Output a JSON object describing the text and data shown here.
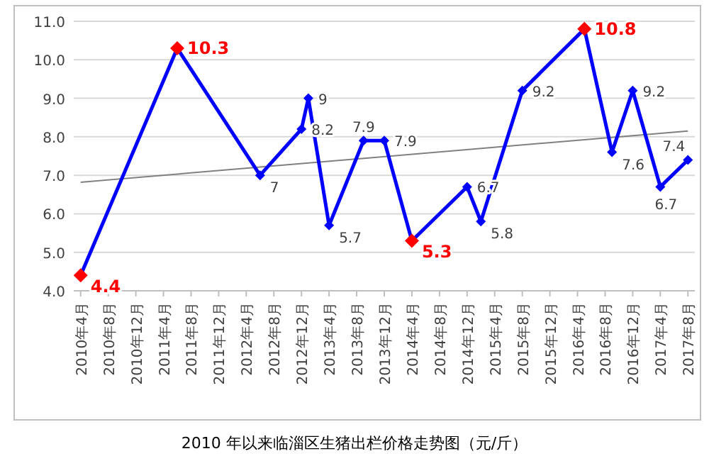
{
  "chart_data": {
    "type": "line",
    "title": "2010 年以来临淄区生猪出栏价格走势图（元/斤）",
    "xlim": [
      "2010-03",
      "2017-09"
    ],
    "xticks": [
      {
        "value": "2010-04",
        "label": "2010年4月"
      },
      {
        "value": "2010-08",
        "label": "2010年8月"
      },
      {
        "value": "2010-12",
        "label": "2010年12月"
      },
      {
        "value": "2011-04",
        "label": "2011年4月"
      },
      {
        "value": "2011-08",
        "label": "2011年8月"
      },
      {
        "value": "2011-12",
        "label": "2011年12月"
      },
      {
        "value": "2012-04",
        "label": "2012年4月"
      },
      {
        "value": "2012-08",
        "label": "2012年8月"
      },
      {
        "value": "2012-12",
        "label": "2012年12月"
      },
      {
        "value": "2013-04",
        "label": "2013年4月"
      },
      {
        "value": "2013-08",
        "label": "2013年8月"
      },
      {
        "value": "2013-12",
        "label": "2013年12月"
      },
      {
        "value": "2014-04",
        "label": "2014年4月"
      },
      {
        "value": "2014-08",
        "label": "2014年8月"
      },
      {
        "value": "2014-12",
        "label": "2014年12月"
      },
      {
        "value": "2015-04",
        "label": "2015年4月"
      },
      {
        "value": "2015-08",
        "label": "2015年8月"
      },
      {
        "value": "2015-12",
        "label": "2015年12月"
      },
      {
        "value": "2016-04",
        "label": "2016年4月"
      },
      {
        "value": "2016-08",
        "label": "2016年8月"
      },
      {
        "value": "2016-12",
        "label": "2016年12月"
      },
      {
        "value": "2017-04",
        "label": "2017年4月"
      },
      {
        "value": "2017-08",
        "label": "2017年8月"
      }
    ],
    "ylim": [
      4,
      11
    ],
    "yticks": [
      {
        "value": 4,
        "label": "4.0"
      },
      {
        "value": 5,
        "label": "5.0"
      },
      {
        "value": 6,
        "label": "6.0"
      },
      {
        "value": 7,
        "label": "7.0"
      },
      {
        "value": 8,
        "label": "8.0"
      },
      {
        "value": 9,
        "label": "9.0"
      },
      {
        "value": 10,
        "label": "10.0"
      },
      {
        "value": 11,
        "label": "11.0"
      }
    ],
    "grid": "y",
    "series": [
      {
        "color": "#808080",
        "marker": "none",
        "x": [
          "2010-04",
          "2017-08"
        ],
        "values": [
          6.82,
          8.15
        ]
      },
      {
        "color": "#0000ff",
        "marker": "diamond",
        "x": [
          "2010-04",
          "2011-06",
          "2012-06",
          "2012-12",
          "2013-01",
          "2013-04",
          "2013-09",
          "2013-12",
          "2014-04",
          "2014-12",
          "2015-02",
          "2015-08",
          "2016-05",
          "2016-09",
          "2016-12",
          "2017-04",
          "2017-08"
        ],
        "values": [
          4.4,
          10.3,
          7,
          8.2,
          9,
          5.7,
          7.9,
          7.9,
          5.3,
          6.7,
          5.8,
          9.2,
          10.8,
          7.6,
          9.2,
          6.7,
          7.4
        ],
        "colors": [
          "#ff0000",
          "#ff0000",
          "#0000ff",
          "#0000ff",
          "#0000ff",
          "#0000ff",
          "#0000ff",
          "#0000ff",
          "#ff0000",
          "#0000ff",
          "#0000ff",
          "#0000ff",
          "#ff0000",
          "#0000ff",
          "#0000ff",
          "#0000ff",
          "#0000ff"
        ],
        "value_labels": [
          "4.4",
          "10.3",
          "7",
          "8.2",
          "9",
          "5.7",
          "7.9",
          "7.9",
          "5.3",
          "6.7",
          "5.8",
          "9.2",
          "10.8",
          "7.6",
          "9.2",
          "6.7",
          "7.4"
        ]
      }
    ]
  }
}
